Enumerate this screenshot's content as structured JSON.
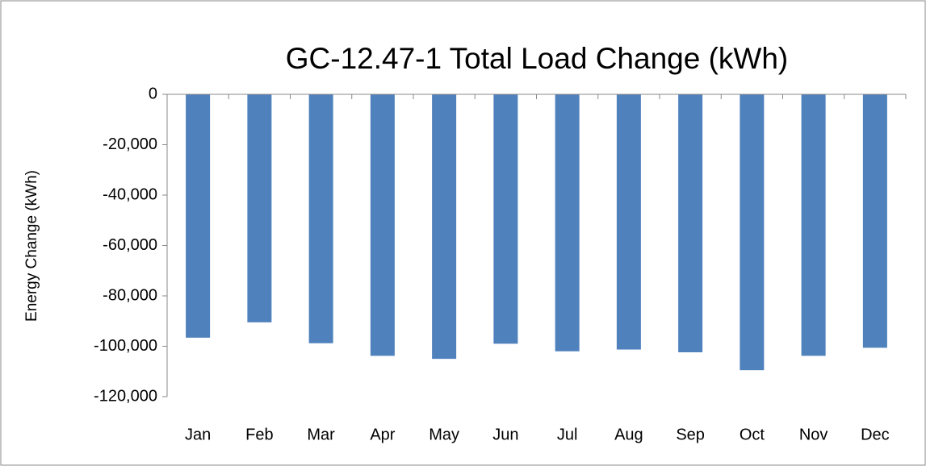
{
  "chart_data": {
    "type": "bar",
    "title": "GC-12.47-1 Total Load Change (kWh)",
    "y_label": "Energy Change (kWh)",
    "categories": [
      "Jan",
      "Feb",
      "Mar",
      "Apr",
      "May",
      "Jun",
      "Jul",
      "Aug",
      "Sep",
      "Oct",
      "Nov",
      "Dec"
    ],
    "values": [
      -96600,
      -90500,
      -98800,
      -103800,
      -105000,
      -99000,
      -102000,
      -101300,
      -102400,
      -109500,
      -103800,
      -100600
    ],
    "color": "#4f81bd",
    "ylim": [
      -120000,
      0
    ],
    "yticks": [
      {
        "value": -120000,
        "label": "-120,000"
      },
      {
        "value": -100000,
        "label": "-100,000"
      },
      {
        "value": -80000,
        "label": "-80,000"
      },
      {
        "value": -60000,
        "label": "-60,000"
      },
      {
        "value": -40000,
        "label": "-40,000"
      },
      {
        "value": -20000,
        "label": "-20,000"
      },
      0
    ],
    "grid": false
  }
}
